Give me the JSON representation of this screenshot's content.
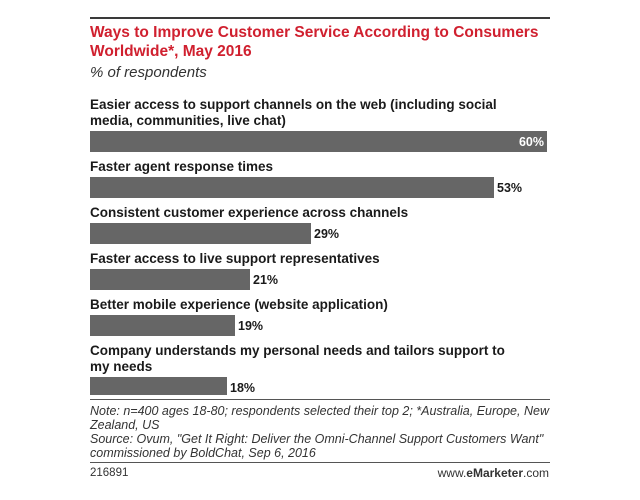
{
  "header": {
    "title": "Ways to Improve Customer Service According to Consumers Worldwide*, May 2016",
    "subtitle": "% of respondents"
  },
  "colors": {
    "title": "#d0202f",
    "bar": "#666666",
    "value_inside": "#ffffff",
    "value_outside": "#1a1a1a"
  },
  "chart_data": {
    "type": "bar",
    "orientation": "horizontal",
    "title": "Ways to Improve Customer Service According to Consumers Worldwide*, May 2016",
    "subtitle": "% of respondents",
    "categories": [
      "Easier access to support channels on the web (including social media, communities, live chat)",
      "Faster agent response times",
      "Consistent customer experience across channels",
      "Faster access to live support representatives",
      "Better mobile experience (website application)",
      "Company understands my personal needs and tailors support to my needs"
    ],
    "category_lines": [
      [
        "Easier access to support channels on the web (including social",
        "media, communities, live chat)"
      ],
      [
        "Faster agent response times"
      ],
      [
        "Consistent customer experience across channels"
      ],
      [
        "Faster access to live support representatives"
      ],
      [
        "Better mobile experience (website application)"
      ],
      [
        "Company understands my personal needs and tailors support to",
        "my needs"
      ]
    ],
    "values": [
      60,
      53,
      29,
      21,
      19,
      18
    ],
    "value_labels": [
      "60%",
      "53%",
      "29%",
      "21%",
      "19%",
      "18%"
    ],
    "unit": "%",
    "xlim": [
      0,
      60
    ],
    "grid": false,
    "legend": "none"
  },
  "footer": {
    "note": "Note: n=400 ages 18-80; respondents selected their top 2; *Australia, Europe, New Zealand, US",
    "source": "Source: Ovum, \"Get It Right: Deliver the Omni-Channel Support Customers Want\" commissioned by BoldChat, Sep 6, 2016",
    "chart_id": "216891",
    "brand_prefix": "www.",
    "brand_name": "eMarketer",
    "brand_suffix": ".com"
  }
}
